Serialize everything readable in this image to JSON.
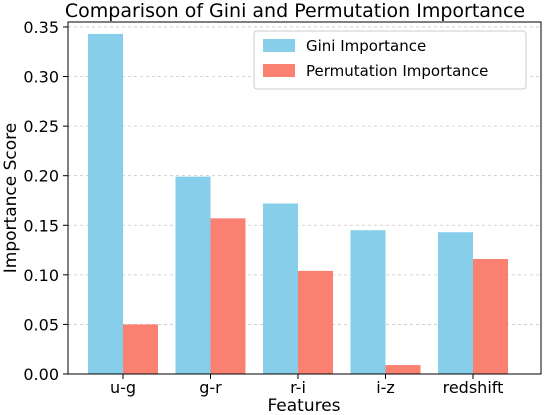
{
  "chart_data": {
    "type": "bar",
    "title": "Comparison of Gini and Permutation Importance",
    "xlabel": "Features",
    "ylabel": "Importance Score",
    "categories": [
      "u-g",
      "g-r",
      "r-i",
      "i-z",
      "redshift"
    ],
    "series": [
      {
        "name": "Gini Importance",
        "color": "#87ceeb",
        "values": [
          0.343,
          0.199,
          0.172,
          0.145,
          0.143
        ]
      },
      {
        "name": "Permutation Importance",
        "color": "#fa8072",
        "values": [
          0.05,
          0.157,
          0.104,
          0.009,
          0.116
        ]
      }
    ],
    "ylim": [
      0,
      0.355
    ],
    "yticks": [
      "0.00",
      "0.05",
      "0.10",
      "0.15",
      "0.20",
      "0.25",
      "0.30",
      "0.35"
    ],
    "grid": "y-dashed",
    "legend_position": "top-right"
  }
}
